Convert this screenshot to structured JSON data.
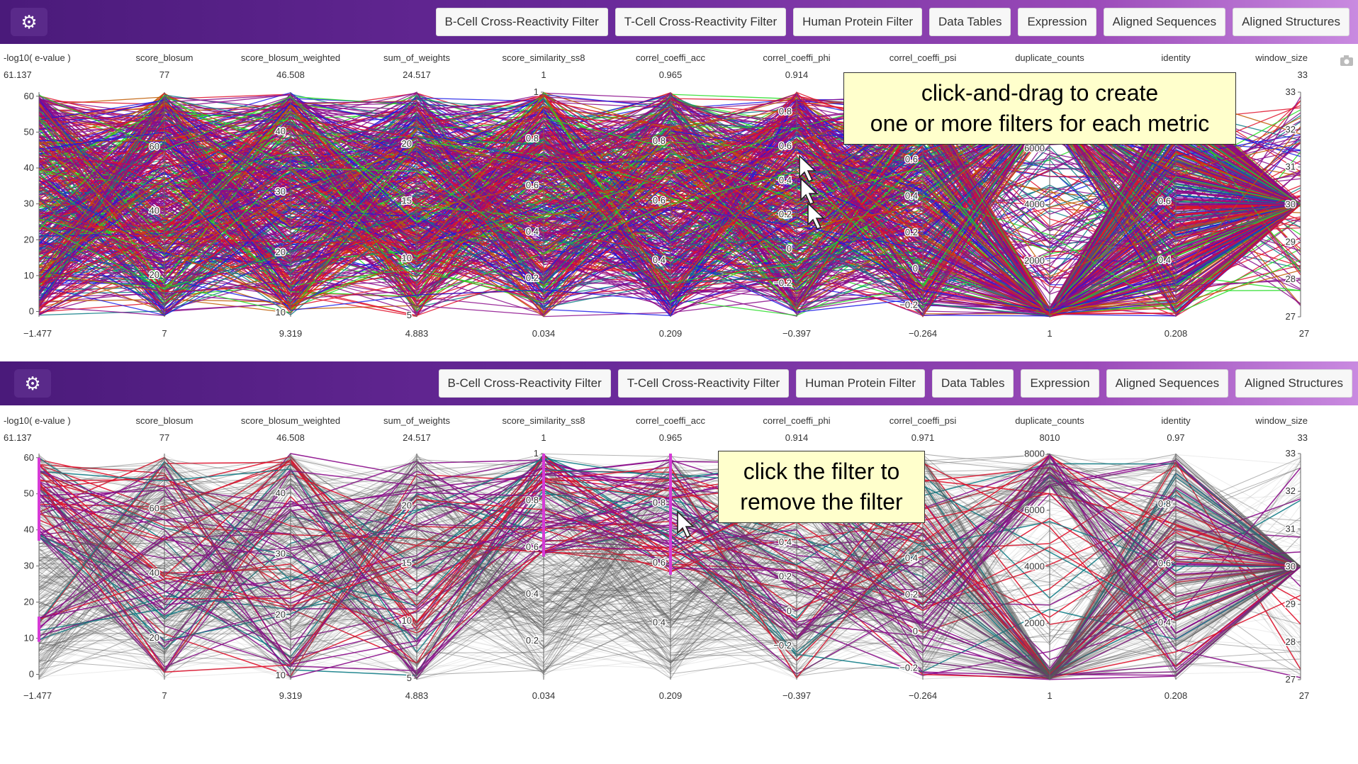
{
  "toolbar": {
    "settings_icon": "gear-icon",
    "buttons": [
      "B-Cell Cross-Reactivity Filter",
      "T-Cell Cross-Reactivity Filter",
      "Human Protein Filter",
      "Data Tables",
      "Expression",
      "Aligned Sequences",
      "Aligned Structures"
    ]
  },
  "camera_icon": "camera-icon",
  "annotations": {
    "top_line1": "click-and-drag to create",
    "top_line2": "one or more filters for each metric",
    "bottom_line1": "click the filter to",
    "bottom_line2": "remove the filter"
  },
  "colors": {
    "teal": "#0e7c86",
    "purple": "#8b0a8b",
    "red": "#e0102a",
    "blue": "#1a1ae6",
    "green": "#22dd22",
    "orange": "#c05a00",
    "gray": "#5a5a5a",
    "filter": "#d63ad6"
  },
  "chart_data": [
    {
      "type": "parallel-coordinates",
      "axes": [
        {
          "name": "-log10( e-value )",
          "max": "61.137",
          "min": "−1.477",
          "range": [
            -1.477,
            61.137
          ],
          "ticks": [
            "0",
            "10",
            "20",
            "30",
            "40",
            "50",
            "60"
          ]
        },
        {
          "name": "score_blosum",
          "max": "77",
          "min": "7",
          "range": [
            7,
            77
          ],
          "ticks": [
            "20",
            "40",
            "60"
          ]
        },
        {
          "name": "score_blosum_weighted",
          "max": "46.508",
          "min": "9.319",
          "range": [
            9.319,
            46.508
          ],
          "ticks": [
            "10",
            "20",
            "30",
            "40"
          ]
        },
        {
          "name": "sum_of_weights",
          "max": "24.517",
          "min": "4.883",
          "range": [
            4.883,
            24.517
          ],
          "ticks": [
            "5",
            "10",
            "15",
            "20"
          ]
        },
        {
          "name": "score_similarity_ss8",
          "max": "1",
          "min": "0.034",
          "range": [
            0.034,
            1
          ],
          "ticks": [
            "0.2",
            "0.4",
            "0.6",
            "0.8",
            "1"
          ]
        },
        {
          "name": "correl_coeffi_acc",
          "max": "0.965",
          "min": "0.209",
          "range": [
            0.209,
            0.965
          ],
          "ticks": [
            "0.4",
            "0.6",
            "0.8"
          ]
        },
        {
          "name": "correl_coeffi_phi",
          "max": "0.914",
          "min": "−0.397",
          "range": [
            -0.397,
            0.914
          ],
          "ticks": [
            "−0.2",
            "0",
            "0.2",
            "0.4",
            "0.6",
            "0.8"
          ]
        },
        {
          "name": "correl_coeffi_psi",
          "max": "",
          "min": "−0.264",
          "range": [
            -0.264,
            0.971
          ],
          "ticks": [
            "−0.2",
            "0",
            "0.2",
            "0.4",
            "0.6"
          ]
        },
        {
          "name": "duplicate_counts",
          "max": "",
          "min": "1",
          "range": [
            1,
            8010
          ],
          "ticks": [
            "2000",
            "4000",
            "6000"
          ]
        },
        {
          "name": "identity",
          "max": "",
          "min": "0.208",
          "range": [
            0.208,
            0.97
          ],
          "ticks": [
            "0.4",
            "0.6"
          ]
        },
        {
          "name": "window_size",
          "max": "33",
          "min": "27",
          "range": [
            27,
            33
          ],
          "ticks": [
            "27",
            "28",
            "29",
            "30",
            "31",
            "32",
            "33"
          ]
        }
      ],
      "filters": []
    },
    {
      "type": "parallel-coordinates",
      "axes": [
        {
          "name": "-log10( e-value )",
          "max": "61.137",
          "min": "−1.477",
          "range": [
            -1.477,
            61.137
          ],
          "ticks": [
            "0",
            "10",
            "20",
            "30",
            "40",
            "50",
            "60"
          ]
        },
        {
          "name": "score_blosum",
          "max": "77",
          "min": "7",
          "range": [
            7,
            77
          ],
          "ticks": [
            "20",
            "40",
            "60"
          ]
        },
        {
          "name": "score_blosum_weighted",
          "max": "46.508",
          "min": "9.319",
          "range": [
            9.319,
            46.508
          ],
          "ticks": [
            "10",
            "20",
            "30",
            "40"
          ]
        },
        {
          "name": "sum_of_weights",
          "max": "24.517",
          "min": "4.883",
          "range": [
            4.883,
            24.517
          ],
          "ticks": [
            "5",
            "10",
            "15",
            "20"
          ]
        },
        {
          "name": "score_similarity_ss8",
          "max": "1",
          "min": "0.034",
          "range": [
            0.034,
            1
          ],
          "ticks": [
            "0.2",
            "0.4",
            "0.6",
            "0.8",
            "1"
          ]
        },
        {
          "name": "correl_coeffi_acc",
          "max": "0.965",
          "min": "0.209",
          "range": [
            0.209,
            0.965
          ],
          "ticks": [
            "0.4",
            "0.6",
            "0.8"
          ]
        },
        {
          "name": "correl_coeffi_phi",
          "max": "0.914",
          "min": "−0.397",
          "range": [
            -0.397,
            0.914
          ],
          "ticks": [
            "−0.2",
            "0",
            "0.2",
            "0.4"
          ]
        },
        {
          "name": "correl_coeffi_psi",
          "max": "0.971",
          "min": "−0.264",
          "range": [
            -0.264,
            0.971
          ],
          "ticks": [
            "−0.2",
            "0",
            "0.2",
            "0.4"
          ]
        },
        {
          "name": "duplicate_counts",
          "max": "8010",
          "min": "1",
          "range": [
            1,
            8010
          ],
          "ticks": [
            "2000",
            "4000",
            "6000",
            "8000"
          ]
        },
        {
          "name": "identity",
          "max": "0.97",
          "min": "0.208",
          "range": [
            0.208,
            0.97
          ],
          "ticks": [
            "0.4",
            "0.6",
            "0.8"
          ]
        },
        {
          "name": "window_size",
          "max": "33",
          "min": "27",
          "range": [
            27,
            33
          ],
          "ticks": [
            "27",
            "28",
            "29",
            "30",
            "31",
            "32",
            "33"
          ]
        }
      ],
      "filters": [
        {
          "axis": 0,
          "range": [
            37,
            60
          ]
        },
        {
          "axis": 0,
          "range": [
            9,
            16
          ]
        },
        {
          "axis": 4,
          "range": [
            0.56,
            1
          ]
        },
        {
          "axis": 5,
          "range": [
            0.56,
            0.965
          ]
        }
      ]
    }
  ]
}
